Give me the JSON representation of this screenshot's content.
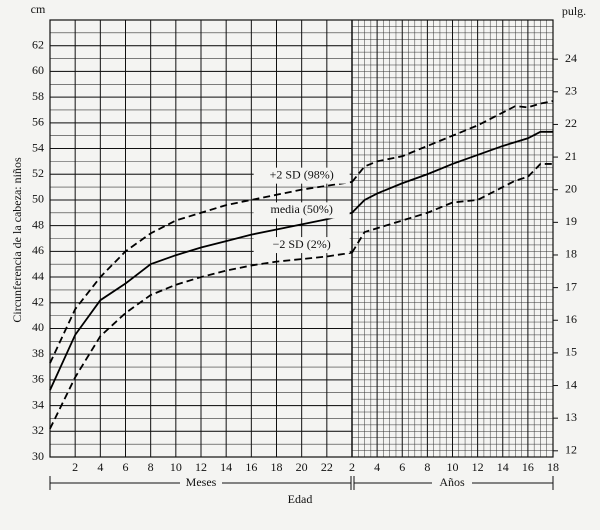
{
  "chart_data": {
    "type": "line",
    "ylabel": "Circunferencia de la cabeza: niños",
    "yunit": "cm",
    "y2unit": "pulg.",
    "xlabel": "Edad",
    "xlabel_months": "Meses",
    "xlabel_years": "Años",
    "x_months": [
      0,
      2,
      4,
      6,
      8,
      10,
      12,
      14,
      16,
      18,
      20,
      22,
      24
    ],
    "x_years": [
      2,
      3,
      4,
      6,
      8,
      10,
      12,
      14,
      15,
      16,
      17,
      18
    ],
    "xlim_months": [
      0,
      24
    ],
    "xticks_months": [
      2,
      4,
      6,
      8,
      10,
      12,
      14,
      16,
      18,
      20,
      22
    ],
    "xlim_years": [
      2,
      18
    ],
    "xticks_years": [
      2,
      4,
      6,
      8,
      10,
      12,
      14,
      16,
      18
    ],
    "ylim": [
      30,
      64
    ],
    "yticks": [
      30,
      32,
      34,
      36,
      38,
      40,
      42,
      44,
      46,
      48,
      50,
      52,
      54,
      56,
      58,
      60,
      62
    ],
    "y2lim": [
      11.81,
      25.2
    ],
    "y2ticks": [
      12,
      13,
      14,
      15,
      16,
      17,
      18,
      19,
      20,
      21,
      22,
      23,
      24
    ],
    "grid": true,
    "series": [
      {
        "name": "+2 SD (98%)",
        "color": "#000",
        "dashed": true,
        "values": [
          37.3,
          41.5,
          44,
          46,
          47.4,
          48.4,
          49.0,
          49.6,
          50.0,
          50.4,
          50.8,
          51.1,
          51.4
        ],
        "values_years": [
          51.4,
          52.6,
          53.0,
          53.4,
          54.2,
          55.0,
          55.8,
          56.8,
          57.3,
          57.2,
          57.5,
          57.7
        ]
      },
      {
        "name": "media (50%)",
        "color": "#000",
        "dashed": false,
        "values": [
          35.2,
          39.5,
          42.2,
          43.5,
          45.0,
          45.7,
          46.3,
          46.8,
          47.3,
          47.7,
          48.1,
          48.5,
          49.0
        ],
        "values_years": [
          49.0,
          50.0,
          50.5,
          51.3,
          52.0,
          52.8,
          53.5,
          54.2,
          54.5,
          54.8,
          55.3,
          55.3
        ]
      },
      {
        "name": "−2 SD (2%)",
        "color": "#000",
        "dashed": true,
        "values": [
          32.2,
          36.2,
          39.4,
          41.2,
          42.6,
          43.4,
          44.0,
          44.5,
          44.9,
          45.2,
          45.4,
          45.6,
          45.9
        ],
        "values_years": [
          45.9,
          47.5,
          47.8,
          48.4,
          49.0,
          49.8,
          50.0,
          51.0,
          51.5,
          51.8,
          52.8,
          52.8
        ]
      }
    ]
  }
}
